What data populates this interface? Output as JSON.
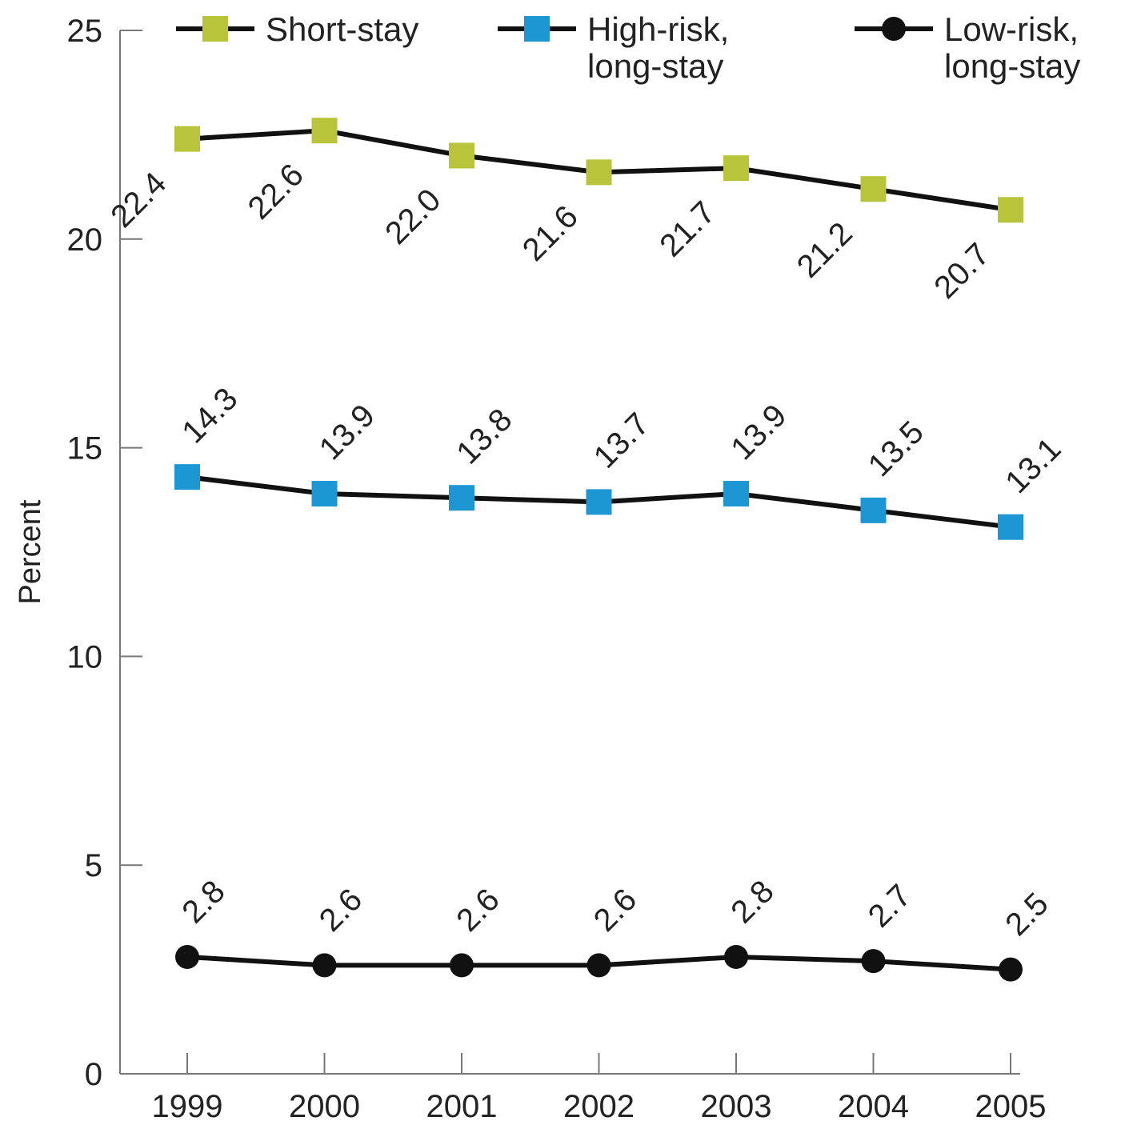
{
  "chart_data": {
    "type": "line",
    "title": "",
    "xlabel": "",
    "ylabel": "Percent",
    "categories": [
      "1999",
      "2000",
      "2001",
      "2002",
      "2003",
      "2004",
      "2005"
    ],
    "ylim": [
      0,
      25
    ],
    "yticks": [
      "0",
      "5",
      "10",
      "15",
      "20",
      "25"
    ],
    "grid": false,
    "legend_position": "top",
    "series": [
      {
        "name": "Short-stay",
        "name_lines": [
          "Short-stay"
        ],
        "marker": "square",
        "color": "#b8c43a",
        "values": [
          22.4,
          22.6,
          22.0,
          21.6,
          21.7,
          21.2,
          20.7
        ],
        "labels": [
          "22.4",
          "22.6",
          "22.0",
          "21.6",
          "21.7",
          "21.2",
          "20.7"
        ]
      },
      {
        "name": "High-risk, long-stay",
        "name_lines": [
          "High-risk,",
          "long-stay"
        ],
        "marker": "square",
        "color": "#1d96d4",
        "values": [
          14.3,
          13.9,
          13.8,
          13.7,
          13.9,
          13.5,
          13.1
        ],
        "labels": [
          "14.3",
          "13.9",
          "13.8",
          "13.7",
          "13.9",
          "13.5",
          "13.1"
        ]
      },
      {
        "name": "Low-risk, long-stay",
        "name_lines": [
          "Low-risk,",
          "long-stay"
        ],
        "marker": "circle",
        "color": "#111111",
        "values": [
          2.8,
          2.6,
          2.6,
          2.6,
          2.8,
          2.7,
          2.5
        ],
        "labels": [
          "2.8",
          "2.6",
          "2.6",
          "2.6",
          "2.8",
          "2.7",
          "2.5"
        ]
      }
    ]
  }
}
